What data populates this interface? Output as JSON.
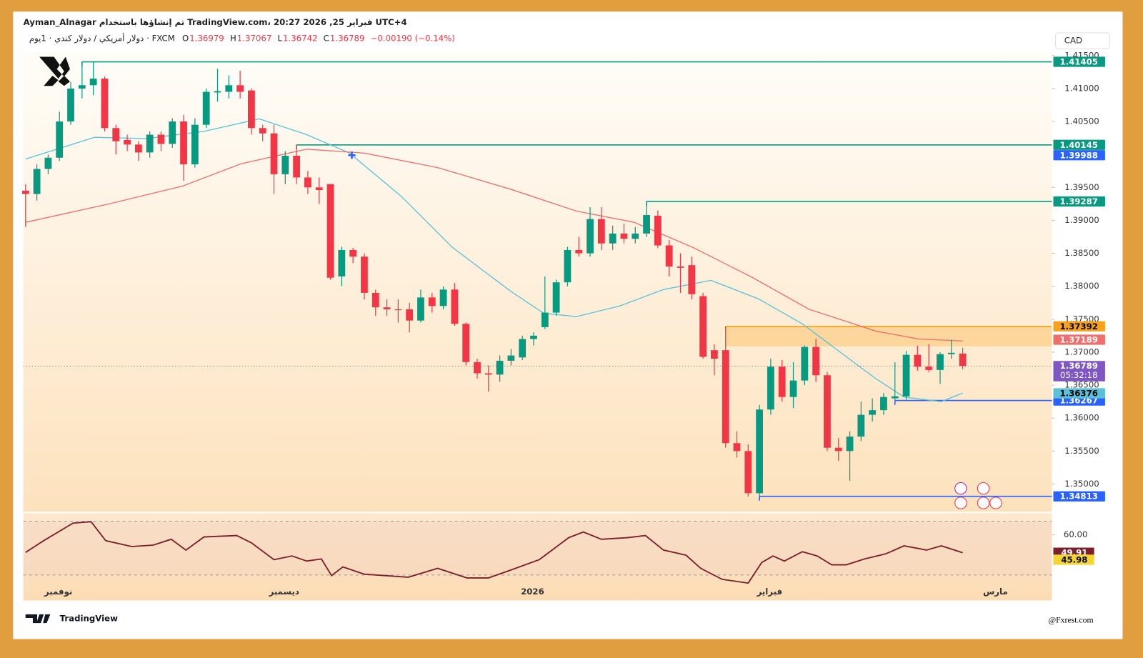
{
  "header": {
    "line1": "Ayman_Alnagar تم إنشاؤها باستخدام TradingView.com، 20:27 2026 ,25 فبراير UTC+4",
    "symbol": "دولار أمريكي / دولار كندي · 1يوم · FXCM",
    "ohlc": [
      {
        "label": "O",
        "value": 1.36979
      },
      {
        "label": "H",
        "value": 1.37067
      },
      {
        "label": "L",
        "value": 1.36742
      },
      {
        "label": "C",
        "value": 1.36789
      }
    ],
    "change": "−0.00190 (−0.14%)",
    "currency": "CAD"
  },
  "chart_data": [
    {
      "type": "candlestick",
      "open": [
        1.3945,
        1.394,
        1.3978,
        1.3995,
        1.405,
        1.41,
        1.4105,
        1.4115,
        1.404,
        1.4022,
        1.4015,
        1.4003,
        1.403,
        1.4016,
        1.405,
        1.3985,
        1.4045,
        1.4094,
        1.4095,
        1.4105,
        1.4097,
        1.404,
        1.4032,
        1.397,
        1.3998,
        1.3965,
        1.395,
        1.3955,
        1.3815,
        1.3855,
        1.3845,
        1.379,
        1.3768,
        1.3765,
        1.3765,
        1.3748,
        1.3783,
        1.377,
        1.3795,
        1.3743,
        1.3685,
        1.3668,
        1.3666,
        1.3687,
        1.3692,
        1.372,
        1.3738,
        1.376,
        1.3806,
        1.3855,
        1.385,
        1.3902,
        1.3865,
        1.388,
        1.3872,
        1.388,
        1.3907,
        1.3862,
        1.383,
        1.3832,
        1.3785,
        1.3703,
        1.3703,
        1.3562,
        1.355,
        1.3486,
        1.3613,
        1.3678,
        1.3632,
        1.3657,
        1.3708,
        1.3665,
        1.3555,
        1.355,
        1.3572,
        1.3605,
        1.3612,
        1.363,
        1.3633,
        1.3696,
        1.3678,
        1.3673,
        1.3697,
        1.36979
      ],
      "high": [
        1.3955,
        1.3985,
        1.4,
        1.4065,
        1.411,
        1.4141,
        1.414,
        1.4118,
        1.4045,
        1.403,
        1.402,
        1.4035,
        1.4035,
        1.4055,
        1.406,
        1.4055,
        1.41,
        1.413,
        1.412,
        1.4127,
        1.41,
        1.4045,
        1.4045,
        1.4005,
        1.4015,
        1.3975,
        1.3965,
        1.3955,
        1.386,
        1.3858,
        1.385,
        1.3795,
        1.378,
        1.378,
        1.3775,
        1.3795,
        1.379,
        1.38,
        1.3805,
        1.3745,
        1.369,
        1.368,
        1.3695,
        1.3705,
        1.3725,
        1.373,
        1.3815,
        1.381,
        1.386,
        1.3875,
        1.392,
        1.392,
        1.3892,
        1.3895,
        1.389,
        1.3929,
        1.3915,
        1.387,
        1.385,
        1.3845,
        1.379,
        1.3712,
        1.3739,
        1.358,
        1.356,
        1.362,
        1.369,
        1.3688,
        1.3685,
        1.371,
        1.372,
        1.367,
        1.357,
        1.358,
        1.3625,
        1.363,
        1.3638,
        1.3685,
        1.3702,
        1.371,
        1.3712,
        1.37,
        1.3719,
        1.37067
      ],
      "low": [
        1.389,
        1.393,
        1.397,
        1.399,
        1.4045,
        1.4085,
        1.409,
        1.4035,
        1.4,
        1.4005,
        1.399,
        1.3995,
        1.4005,
        1.401,
        1.396,
        1.398,
        1.404,
        1.408,
        1.4085,
        1.4085,
        1.403,
        1.402,
        1.394,
        1.3955,
        1.3955,
        1.394,
        1.3925,
        1.381,
        1.38,
        1.3835,
        1.378,
        1.3755,
        1.3755,
        1.3745,
        1.373,
        1.3745,
        1.376,
        1.3765,
        1.374,
        1.368,
        1.366,
        1.364,
        1.3655,
        1.368,
        1.3688,
        1.371,
        1.3735,
        1.3755,
        1.38,
        1.3845,
        1.3845,
        1.3855,
        1.3855,
        1.3865,
        1.3865,
        1.3875,
        1.3858,
        1.3815,
        1.379,
        1.378,
        1.369,
        1.3665,
        1.3555,
        1.354,
        1.3481,
        1.3481,
        1.3605,
        1.3625,
        1.3615,
        1.365,
        1.3655,
        1.355,
        1.3535,
        1.3505,
        1.3565,
        1.3595,
        1.3605,
        1.3627,
        1.3628,
        1.3672,
        1.367,
        1.3652,
        1.369,
        1.36742
      ],
      "close": [
        1.394,
        1.3978,
        1.3995,
        1.405,
        1.41,
        1.4105,
        1.4115,
        1.404,
        1.402,
        1.4015,
        1.4003,
        1.403,
        1.4016,
        1.405,
        1.3985,
        1.4045,
        1.4095,
        1.4096,
        1.4105,
        1.4095,
        1.404,
        1.4032,
        1.397,
        1.3998,
        1.3965,
        1.395,
        1.3946,
        1.3813,
        1.3855,
        1.3845,
        1.379,
        1.3768,
        1.3765,
        1.3764,
        1.3748,
        1.3783,
        1.377,
        1.3795,
        1.3743,
        1.3685,
        1.3668,
        1.3666,
        1.3687,
        1.3695,
        1.372,
        1.3725,
        1.376,
        1.3806,
        1.3855,
        1.385,
        1.3902,
        1.3865,
        1.388,
        1.3872,
        1.388,
        1.3908,
        1.3862,
        1.383,
        1.3828,
        1.3788,
        1.3693,
        1.369,
        1.3562,
        1.355,
        1.3486,
        1.3613,
        1.3678,
        1.3632,
        1.3657,
        1.3708,
        1.3665,
        1.3555,
        1.355,
        1.3572,
        1.3605,
        1.3612,
        1.3632,
        1.3633,
        1.3696,
        1.3678,
        1.3673,
        1.3697,
        1.3699,
        1.36789
      ],
      "up_color": "#089981",
      "down_color": "#f23645",
      "xlim": [
        -0.2,
        90.9
      ],
      "ylim": [
        1.3458,
        1.4157
      ],
      "yticks": [
        {
          "value": 1.415,
          "label": "1.41500"
        },
        {
          "value": 1.41,
          "label": "1.41000"
        },
        {
          "value": 1.405,
          "label": "1.40500"
        },
        {
          "value": 1.395,
          "label": "1.39500"
        },
        {
          "value": 1.39,
          "label": "1.39000"
        },
        {
          "value": 1.385,
          "label": "1.38500"
        },
        {
          "value": 1.38,
          "label": "1.38000"
        },
        {
          "value": 1.375,
          "label": "1.37500"
        },
        {
          "value": 1.37,
          "label": "1.37000"
        },
        {
          "value": 1.365,
          "label": "1.36500"
        },
        {
          "value": 1.36,
          "label": "1.36000"
        },
        {
          "value": 1.355,
          "label": "1.35500"
        },
        {
          "value": 1.35,
          "label": "1.35000"
        }
      ],
      "moving_averages": [
        {
          "color": "#5bc0d8",
          "x": [
            0,
            6.1,
            10.7,
            15.8,
            20.7,
            24.9,
            28.7,
            33.3,
            37.8,
            43,
            45.9,
            48.8,
            52.6,
            56.5,
            60.7,
            64.9,
            68.8,
            72.7,
            75.3,
            77.8,
            81.1,
            83
          ],
          "values": [
            1.3993,
            1.4026,
            1.4024,
            1.4035,
            1.4054,
            1.403,
            1.4002,
            1.3936,
            1.3859,
            1.3792,
            1.3759,
            1.3754,
            1.377,
            1.3795,
            1.3809,
            1.3781,
            1.3743,
            1.3693,
            1.366,
            1.3632,
            1.3625,
            1.3638
          ],
          "tag": 1.36376
        },
        {
          "color": "#ef6f6c",
          "x": [
            0,
            7.4,
            13.9,
            19.1,
            24.9,
            30,
            36.5,
            43,
            48.8,
            53.9,
            59.1,
            64.3,
            69.4,
            75.3,
            79.1,
            83
          ],
          "values": [
            1.3897,
            1.3925,
            1.3952,
            1.3986,
            1.4008,
            1.4002,
            1.398,
            1.3947,
            1.3914,
            1.3897,
            1.3859,
            1.3814,
            1.3765,
            1.3732,
            1.372,
            1.3717
          ],
          "tag": 1.37189
        }
      ],
      "levels": [
        {
          "value": 1.41405,
          "color": "#089981",
          "from": 5
        },
        {
          "value": 1.40145,
          "color": "#089981",
          "from": 24
        },
        {
          "value": 1.39287,
          "color": "#089981",
          "from": 55
        },
        {
          "value": 1.37392,
          "color": "#f7a21b",
          "from": 62,
          "zone_low": 1.3709
        },
        {
          "value": 1.36267,
          "color": "#2962ff",
          "from": 77
        },
        {
          "value": 1.34813,
          "color": "#2962ff",
          "from": 65
        }
      ],
      "marker": {
        "x": 28.9,
        "value": 1.39988,
        "color": "#2962ff"
      },
      "last_price": 1.36789,
      "last_color": "#7e57c2",
      "countdown": "05:32:18",
      "xticks": [
        {
          "value": 2.9,
          "label": "نوفمبر"
        },
        {
          "value": 22.9,
          "label": "ديسمبر"
        },
        {
          "value": 44.9,
          "label": "2026"
        },
        {
          "value": 65.9,
          "label": "فبراير"
        },
        {
          "value": 85.9,
          "label": "مارس"
        }
      ]
    },
    {
      "type": "line",
      "color": "#7b1f2a",
      "xlim": [
        -0.2,
        90.9
      ],
      "ylim": [
        32,
        71
      ],
      "x": [
        0,
        1.6,
        4.2,
        5.8,
        7.1,
        9.4,
        11.3,
        12.9,
        14.2,
        15.8,
        18.7,
        20,
        22,
        23.6,
        24.9,
        26.2,
        27.1,
        28.1,
        30,
        33.9,
        36.5,
        39.1,
        41,
        43,
        45.5,
        48.1,
        49.4,
        51,
        53.3,
        54.9,
        56.5,
        58.5,
        59.8,
        61.7,
        64,
        65.2,
        66.2,
        67.2,
        68.8,
        70.1,
        71.4,
        72.7,
        74.3,
        76.2,
        77.8,
        79.8,
        81.1,
        83
      ],
      "values": [
        50.1,
        56.7,
        66.6,
        67.4,
        56.7,
        53.4,
        54.2,
        57.5,
        51.4,
        58.8,
        59.6,
        55.5,
        46,
        48.1,
        45.2,
        46.4,
        37,
        41.9,
        37.8,
        36.1,
        41.1,
        35.7,
        35.7,
        40.2,
        46,
        58.4,
        61.6,
        57.5,
        58.4,
        59.6,
        51.4,
        48.5,
        41.1,
        34.9,
        32.8,
        44.4,
        48.1,
        45.2,
        50.5,
        48.1,
        43.1,
        43.1,
        46.4,
        49.3,
        53.8,
        51.4,
        53.8,
        49.91
      ],
      "yticks": [
        {
          "value": 60,
          "label": "60.00"
        }
      ],
      "last": 49.91,
      "signal_last": 45.98,
      "signal_color": "#f5d533"
    }
  ],
  "footer": {
    "brand": "TradingView",
    "watermark": "@Fxrest.com"
  }
}
